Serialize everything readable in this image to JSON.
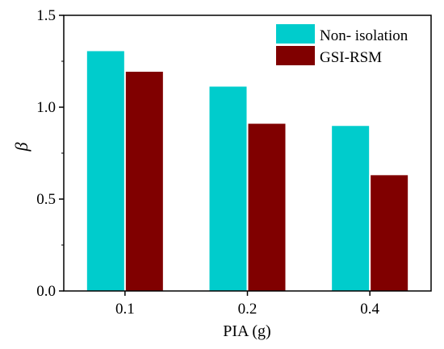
{
  "chart_data": {
    "type": "bar",
    "categories": [
      "0.1",
      "0.2",
      "0.4"
    ],
    "series": [
      {
        "name": "Non- isolation",
        "color": "#00CCCC",
        "values": [
          1.305,
          1.112,
          0.898
        ]
      },
      {
        "name": "GSI-RSM",
        "color": "#800000",
        "values": [
          1.193,
          0.91,
          0.63
        ]
      }
    ],
    "xlabel": "PIA (g)",
    "ylabel": "β",
    "ylim": [
      0,
      1.5
    ],
    "yticks": [
      "0.0",
      "0.5",
      "1.0",
      "1.5"
    ],
    "grid": false,
    "legend_position": "top-right"
  }
}
